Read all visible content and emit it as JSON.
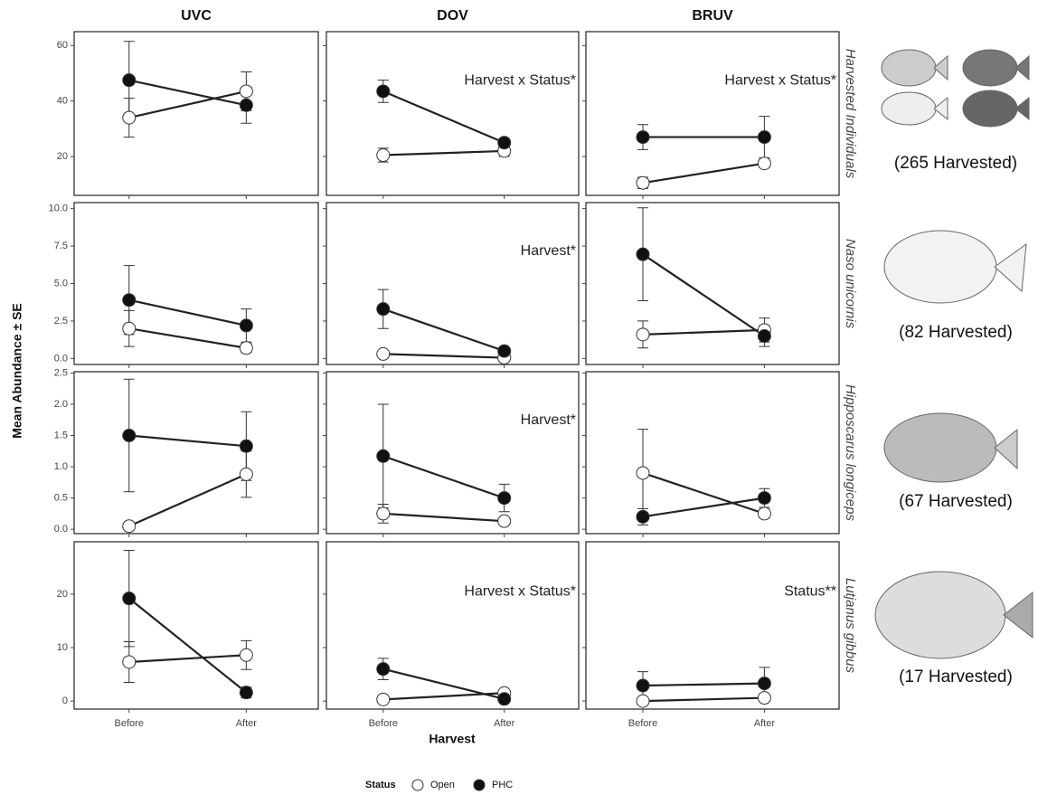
{
  "figure": {
    "columns": [
      "UVC",
      "DOV",
      "BRUV"
    ],
    "y_label": "Mean Abundance ± SE",
    "x_label": "Harvest",
    "categories": [
      "Before",
      "After"
    ],
    "legend": {
      "title": "Status",
      "entries": [
        {
          "name": "Open",
          "color": "#ffffff"
        },
        {
          "name": "PHC",
          "color": "#111111"
        }
      ]
    }
  },
  "chart_data": [
    {
      "type": "line",
      "row_label": "Harvested Individuals",
      "harvested": "(265 Harvested)",
      "ylim": [
        6,
        65
      ],
      "yticks": [
        20,
        40,
        60
      ],
      "panels": [
        {
          "series": [
            {
              "values": [
                34,
                43.5
              ],
              "errors": [
                7,
                7
              ]
            },
            {
              "values": [
                47.5,
                38.5
              ],
              "errors": [
                14,
                6.5
              ]
            }
          ]
        },
        {
          "annotation": "Harvest x Status*",
          "series": [
            {
              "values": [
                20.5,
                22
              ],
              "errors": [
                2.5,
                2
              ]
            },
            {
              "values": [
                43.5,
                25
              ],
              "errors": [
                4,
                1.5
              ]
            }
          ]
        },
        {
          "annotation": "Harvest x Status*",
          "series": [
            {
              "values": [
                10.5,
                17.5
              ],
              "errors": [
                2,
                1.5
              ]
            },
            {
              "values": [
                27,
                27
              ],
              "errors": [
                4.5,
                7.5
              ]
            }
          ]
        }
      ]
    },
    {
      "type": "line",
      "row_label": "Naso unicornis",
      "harvested": "(82 Harvested)",
      "ylim": [
        -0.4,
        10.4
      ],
      "yticks": [
        {
          "value": 0,
          "label": "0.0"
        },
        2.5,
        {
          "value": 5,
          "label": "5.0"
        },
        7.5,
        {
          "value": 10,
          "label": "10.0"
        }
      ],
      "panels": [
        {
          "series": [
            {
              "values": [
                2.0,
                0.7
              ],
              "errors": [
                1.2,
                0.3
              ]
            },
            {
              "values": [
                3.9,
                2.2
              ],
              "errors": [
                2.3,
                1.1
              ]
            }
          ]
        },
        {
          "annotation": "Harvest*",
          "series": [
            {
              "values": [
                0.3,
                0.05
              ],
              "errors": [
                0.1,
                0.05
              ]
            },
            {
              "values": [
                3.3,
                0.5
              ],
              "errors": [
                1.3,
                0.25
              ]
            }
          ]
        },
        {
          "series": [
            {
              "values": [
                1.6,
                1.9
              ],
              "errors": [
                0.9,
                0.8
              ]
            },
            {
              "values": [
                6.95,
                1.5
              ],
              "errors": [
                3.1,
                0.7
              ]
            }
          ]
        }
      ]
    },
    {
      "type": "line",
      "row_label": "Hipposcarus longiceps",
      "harvested": "(67 Harvested)",
      "ylim": [
        -0.07,
        2.52
      ],
      "yticks": [
        {
          "value": 0,
          "label": "0.0"
        },
        0.5,
        {
          "value": 1,
          "label": "1.0"
        },
        1.5,
        {
          "value": 2,
          "label": "2.0"
        },
        2.5
      ],
      "panels": [
        {
          "series": [
            {
              "values": [
                0.05,
                0.88
              ],
              "errors": [
                0.03,
                0.37
              ]
            },
            {
              "values": [
                1.5,
                1.33
              ],
              "errors": [
                0.9,
                0.55
              ]
            }
          ]
        },
        {
          "annotation": "Harvest*",
          "series": [
            {
              "values": [
                0.25,
                0.13
              ],
              "errors": [
                0.15,
                0.05
              ]
            },
            {
              "values": [
                1.17,
                0.5
              ],
              "errors": [
                0.83,
                0.22
              ]
            }
          ]
        },
        {
          "series": [
            {
              "values": [
                0.9,
                0.25
              ],
              "errors": [
                0.7,
                0.07
              ]
            },
            {
              "values": [
                0.2,
                0.5
              ],
              "errors": [
                0.13,
                0.15
              ]
            }
          ]
        }
      ]
    },
    {
      "type": "line",
      "row_label": "Lutjanus gibbus",
      "harvested": "(17 Harvested)",
      "ylim": [
        -1.5,
        29.8
      ],
      "yticks": [
        0,
        10,
        20
      ],
      "panels": [
        {
          "series": [
            {
              "values": [
                7.3,
                8.6
              ],
              "errors": [
                3.8,
                2.7
              ]
            },
            {
              "values": [
                19.2,
                1.6
              ],
              "errors": [
                9,
                1
              ]
            }
          ]
        },
        {
          "annotation": "Harvest x Status*",
          "series": [
            {
              "values": [
                0.3,
                1.5
              ],
              "errors": [
                0.2,
                0.6
              ]
            },
            {
              "values": [
                6,
                0.4
              ],
              "errors": [
                2,
                0.3
              ]
            }
          ]
        },
        {
          "annotation": "Status**",
          "series": [
            {
              "values": [
                0,
                0.6
              ],
              "errors": [
                0.1,
                0.4
              ]
            },
            {
              "values": [
                2.9,
                3.3
              ],
              "errors": [
                2.6,
                3
              ]
            }
          ]
        }
      ]
    }
  ]
}
